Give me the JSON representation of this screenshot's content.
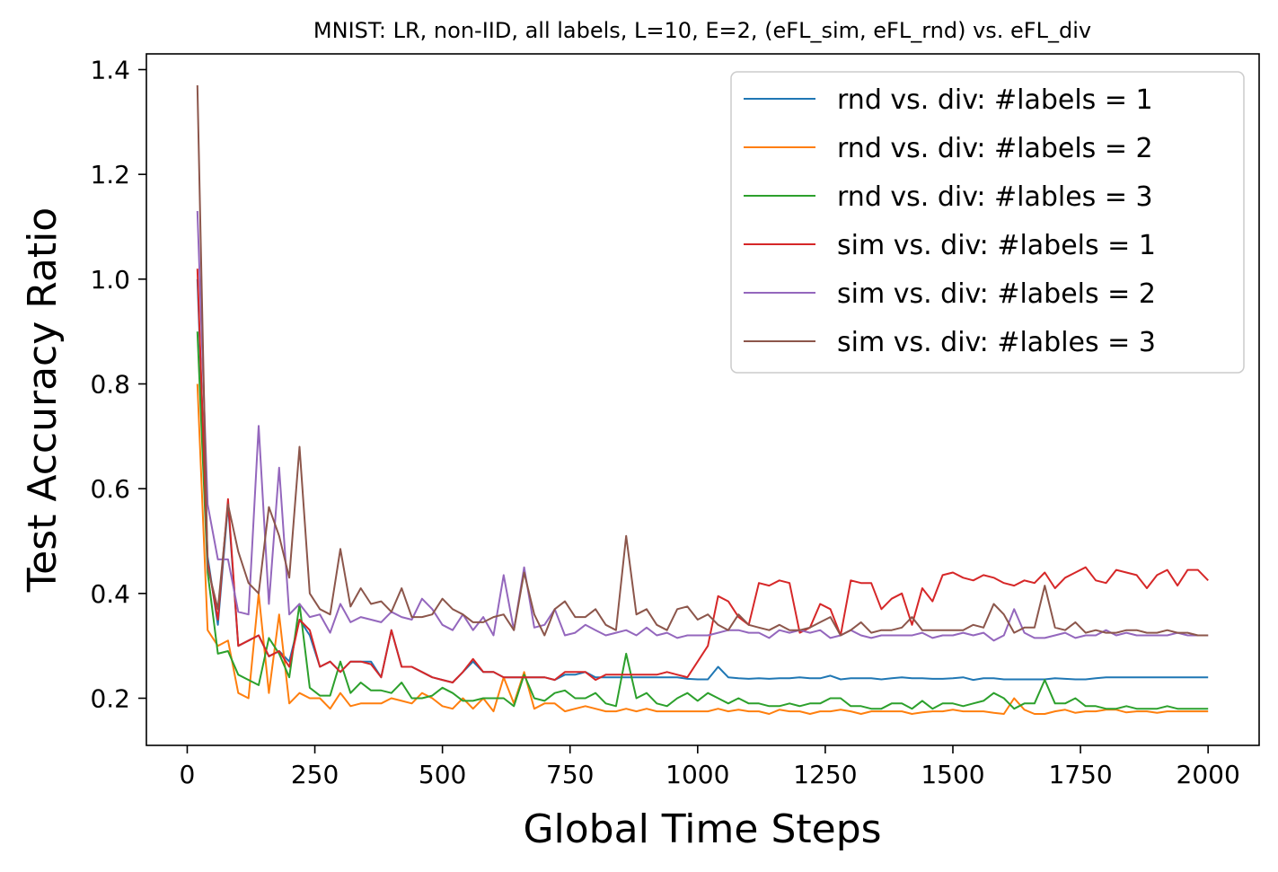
{
  "chart_data": {
    "type": "line",
    "title": "MNIST: LR, non-IID, all labels, L=10, E=2, (eFL_sim, eFL_rnd) vs. eFL_div",
    "xlabel": "Global Time Steps",
    "ylabel": "Test Accuracy Ratio",
    "xlim": [
      -80,
      2100
    ],
    "ylim": [
      0.11,
      1.43
    ],
    "xticks": [
      0,
      250,
      500,
      750,
      1000,
      1250,
      1500,
      1750,
      2000
    ],
    "xtick_labels": [
      "0",
      "250",
      "500",
      "750",
      "1000",
      "1250",
      "1500",
      "1750",
      "2000"
    ],
    "yticks": [
      0.2,
      0.4,
      0.6,
      0.8,
      1.0,
      1.2,
      1.4
    ],
    "ytick_labels": [
      "0.2",
      "0.4",
      "0.6",
      "0.8",
      "1.0",
      "1.2",
      "1.4"
    ],
    "grid": false,
    "legend_position": "top-right",
    "x": [
      20,
      40,
      60,
      80,
      100,
      120,
      140,
      160,
      180,
      200,
      220,
      240,
      260,
      280,
      300,
      320,
      340,
      360,
      380,
      400,
      420,
      440,
      460,
      480,
      500,
      520,
      540,
      560,
      580,
      600,
      620,
      640,
      660,
      680,
      700,
      720,
      740,
      760,
      780,
      800,
      820,
      840,
      860,
      880,
      900,
      920,
      940,
      960,
      980,
      1000,
      1020,
      1040,
      1060,
      1080,
      1100,
      1120,
      1140,
      1160,
      1180,
      1200,
      1220,
      1240,
      1260,
      1280,
      1300,
      1320,
      1340,
      1360,
      1380,
      1400,
      1420,
      1440,
      1460,
      1480,
      1500,
      1520,
      1540,
      1560,
      1580,
      1600,
      1620,
      1640,
      1660,
      1680,
      1700,
      1720,
      1740,
      1760,
      1780,
      1800,
      1820,
      1840,
      1860,
      1880,
      1900,
      1920,
      1940,
      1960,
      1980,
      2000
    ],
    "series": [
      {
        "name": "rnd vs. div: #labels = 1",
        "color": "#1f77b4",
        "values": [
          1.0,
          0.47,
          0.34,
          0.57,
          0.3,
          0.31,
          0.32,
          0.28,
          0.29,
          0.27,
          0.35,
          0.32,
          0.26,
          0.27,
          0.25,
          0.27,
          0.27,
          0.27,
          0.24,
          0.33,
          0.26,
          0.26,
          0.25,
          0.24,
          0.235,
          0.23,
          0.25,
          0.27,
          0.25,
          0.25,
          0.24,
          0.24,
          0.24,
          0.24,
          0.24,
          0.235,
          0.245,
          0.245,
          0.25,
          0.24,
          0.24,
          0.24,
          0.24,
          0.24,
          0.24,
          0.24,
          0.24,
          0.24,
          0.237,
          0.236,
          0.236,
          0.26,
          0.24,
          0.238,
          0.237,
          0.238,
          0.237,
          0.238,
          0.238,
          0.24,
          0.238,
          0.238,
          0.243,
          0.236,
          0.238,
          0.238,
          0.238,
          0.236,
          0.238,
          0.24,
          0.238,
          0.238,
          0.237,
          0.237,
          0.238,
          0.24,
          0.235,
          0.238,
          0.238,
          0.236,
          0.236,
          0.236,
          0.236,
          0.236,
          0.238,
          0.237,
          0.236,
          0.236,
          0.238,
          0.24,
          0.24,
          0.24,
          0.24,
          0.24,
          0.24,
          0.24,
          0.24,
          0.24,
          0.24,
          0.24
        ]
      },
      {
        "name": "rnd vs. div: #labels = 2",
        "color": "#ff7f0e",
        "values": [
          0.8,
          0.33,
          0.3,
          0.31,
          0.21,
          0.2,
          0.4,
          0.21,
          0.36,
          0.19,
          0.21,
          0.2,
          0.2,
          0.18,
          0.21,
          0.185,
          0.19,
          0.19,
          0.19,
          0.2,
          0.195,
          0.19,
          0.21,
          0.2,
          0.185,
          0.18,
          0.2,
          0.18,
          0.2,
          0.175,
          0.24,
          0.19,
          0.25,
          0.18,
          0.19,
          0.19,
          0.175,
          0.18,
          0.185,
          0.18,
          0.175,
          0.175,
          0.18,
          0.175,
          0.18,
          0.175,
          0.175,
          0.175,
          0.175,
          0.175,
          0.175,
          0.18,
          0.175,
          0.178,
          0.175,
          0.175,
          0.17,
          0.178,
          0.175,
          0.175,
          0.17,
          0.175,
          0.175,
          0.178,
          0.175,
          0.17,
          0.175,
          0.175,
          0.175,
          0.175,
          0.17,
          0.173,
          0.175,
          0.175,
          0.178,
          0.175,
          0.175,
          0.175,
          0.172,
          0.17,
          0.2,
          0.178,
          0.17,
          0.17,
          0.175,
          0.178,
          0.172,
          0.175,
          0.175,
          0.178,
          0.178,
          0.173,
          0.175,
          0.175,
          0.172,
          0.175,
          0.175,
          0.175,
          0.175,
          0.175
        ]
      },
      {
        "name": "rnd vs. div: #lables = 3",
        "color": "#2ca02c",
        "values": [
          0.9,
          0.44,
          0.285,
          0.29,
          0.245,
          0.235,
          0.225,
          0.315,
          0.285,
          0.24,
          0.38,
          0.22,
          0.205,
          0.205,
          0.27,
          0.21,
          0.23,
          0.215,
          0.215,
          0.21,
          0.23,
          0.2,
          0.2,
          0.205,
          0.22,
          0.21,
          0.195,
          0.195,
          0.2,
          0.2,
          0.2,
          0.185,
          0.245,
          0.2,
          0.195,
          0.21,
          0.215,
          0.2,
          0.2,
          0.21,
          0.19,
          0.185,
          0.285,
          0.2,
          0.21,
          0.19,
          0.185,
          0.2,
          0.21,
          0.195,
          0.21,
          0.2,
          0.19,
          0.2,
          0.19,
          0.19,
          0.185,
          0.185,
          0.19,
          0.185,
          0.19,
          0.19,
          0.2,
          0.2,
          0.185,
          0.185,
          0.18,
          0.18,
          0.19,
          0.19,
          0.18,
          0.195,
          0.18,
          0.19,
          0.19,
          0.185,
          0.19,
          0.195,
          0.21,
          0.2,
          0.18,
          0.19,
          0.19,
          0.235,
          0.19,
          0.19,
          0.2,
          0.185,
          0.185,
          0.18,
          0.18,
          0.185,
          0.18,
          0.18,
          0.18,
          0.185,
          0.18,
          0.18,
          0.18,
          0.18
        ]
      },
      {
        "name": "sim vs. div: #labels = 1",
        "color": "#d62728",
        "values": [
          1.02,
          0.46,
          0.35,
          0.58,
          0.3,
          0.31,
          0.32,
          0.28,
          0.29,
          0.26,
          0.35,
          0.33,
          0.26,
          0.27,
          0.25,
          0.27,
          0.27,
          0.265,
          0.24,
          0.33,
          0.26,
          0.26,
          0.25,
          0.24,
          0.235,
          0.23,
          0.25,
          0.275,
          0.25,
          0.25,
          0.24,
          0.24,
          0.24,
          0.24,
          0.24,
          0.235,
          0.25,
          0.25,
          0.25,
          0.235,
          0.245,
          0.245,
          0.245,
          0.245,
          0.245,
          0.245,
          0.25,
          0.245,
          0.24,
          0.27,
          0.3,
          0.395,
          0.385,
          0.355,
          0.34,
          0.42,
          0.415,
          0.425,
          0.42,
          0.325,
          0.335,
          0.38,
          0.37,
          0.32,
          0.425,
          0.42,
          0.42,
          0.37,
          0.39,
          0.4,
          0.34,
          0.41,
          0.385,
          0.435,
          0.44,
          0.43,
          0.425,
          0.435,
          0.43,
          0.42,
          0.415,
          0.425,
          0.42,
          0.44,
          0.41,
          0.43,
          0.44,
          0.45,
          0.425,
          0.42,
          0.445,
          0.44,
          0.435,
          0.41,
          0.435,
          0.445,
          0.415,
          0.445,
          0.445,
          0.425
        ]
      },
      {
        "name": "sim vs. div: #labels = 2",
        "color": "#9467bd",
        "values": [
          1.13,
          0.57,
          0.465,
          0.465,
          0.365,
          0.36,
          0.72,
          0.38,
          0.64,
          0.36,
          0.38,
          0.355,
          0.36,
          0.325,
          0.38,
          0.345,
          0.355,
          0.35,
          0.345,
          0.365,
          0.355,
          0.35,
          0.39,
          0.37,
          0.34,
          0.33,
          0.36,
          0.33,
          0.355,
          0.32,
          0.435,
          0.33,
          0.45,
          0.335,
          0.34,
          0.37,
          0.32,
          0.325,
          0.34,
          0.33,
          0.32,
          0.325,
          0.33,
          0.32,
          0.335,
          0.32,
          0.325,
          0.315,
          0.32,
          0.32,
          0.32,
          0.325,
          0.33,
          0.33,
          0.325,
          0.325,
          0.315,
          0.33,
          0.325,
          0.33,
          0.325,
          0.33,
          0.315,
          0.32,
          0.33,
          0.32,
          0.315,
          0.32,
          0.32,
          0.32,
          0.32,
          0.325,
          0.315,
          0.32,
          0.32,
          0.325,
          0.32,
          0.325,
          0.31,
          0.32,
          0.37,
          0.325,
          0.315,
          0.315,
          0.32,
          0.325,
          0.315,
          0.32,
          0.32,
          0.33,
          0.32,
          0.325,
          0.32,
          0.32,
          0.32,
          0.32,
          0.325,
          0.32,
          0.32,
          0.32
        ]
      },
      {
        "name": "sim vs. div: #lables = 3",
        "color": "#8c564b",
        "values": [
          1.37,
          0.45,
          0.37,
          0.57,
          0.48,
          0.42,
          0.4,
          0.565,
          0.51,
          0.43,
          0.68,
          0.4,
          0.37,
          0.36,
          0.485,
          0.375,
          0.41,
          0.38,
          0.385,
          0.365,
          0.41,
          0.355,
          0.355,
          0.36,
          0.39,
          0.37,
          0.36,
          0.345,
          0.345,
          0.355,
          0.36,
          0.33,
          0.44,
          0.36,
          0.32,
          0.37,
          0.385,
          0.355,
          0.355,
          0.37,
          0.34,
          0.33,
          0.51,
          0.36,
          0.37,
          0.34,
          0.33,
          0.37,
          0.375,
          0.35,
          0.36,
          0.34,
          0.33,
          0.36,
          0.34,
          0.335,
          0.33,
          0.34,
          0.33,
          0.33,
          0.335,
          0.345,
          0.355,
          0.32,
          0.33,
          0.345,
          0.325,
          0.33,
          0.33,
          0.335,
          0.355,
          0.33,
          0.33,
          0.33,
          0.33,
          0.33,
          0.34,
          0.335,
          0.38,
          0.36,
          0.325,
          0.335,
          0.335,
          0.415,
          0.335,
          0.33,
          0.345,
          0.325,
          0.33,
          0.325,
          0.325,
          0.33,
          0.33,
          0.325,
          0.325,
          0.33,
          0.325,
          0.325,
          0.32,
          0.32
        ]
      }
    ]
  }
}
